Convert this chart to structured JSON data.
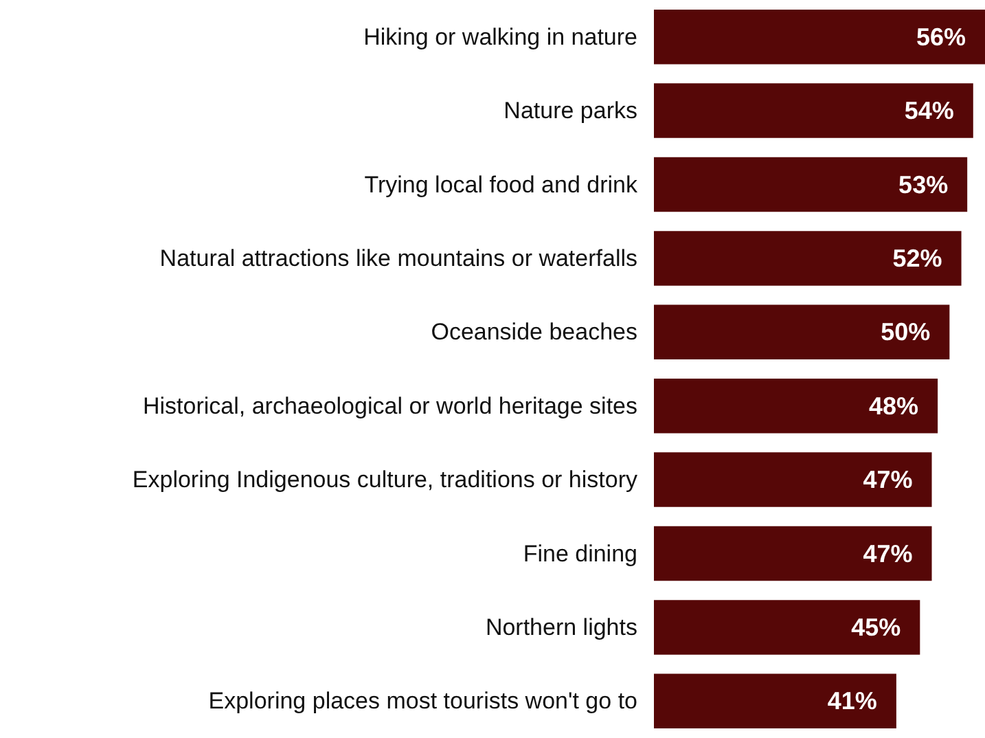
{
  "chart_data": {
    "type": "bar",
    "orientation": "horizontal",
    "categories": [
      "Hiking or walking in nature",
      "Nature parks",
      "Trying local food and drink",
      "Natural attractions like mountains or waterfalls",
      "Oceanside beaches",
      "Historical, archaeological or world heritage sites",
      "Exploring Indigenous culture, traditions or history",
      "Fine dining",
      "Northern lights",
      "Exploring places most tourists won't go to"
    ],
    "values": [
      56,
      54,
      53,
      52,
      50,
      48,
      47,
      47,
      45,
      41
    ],
    "value_labels": [
      "56%",
      "54%",
      "53%",
      "52%",
      "50%",
      "48%",
      "47%",
      "47%",
      "45%",
      "41%"
    ],
    "color": "#560707"
  }
}
